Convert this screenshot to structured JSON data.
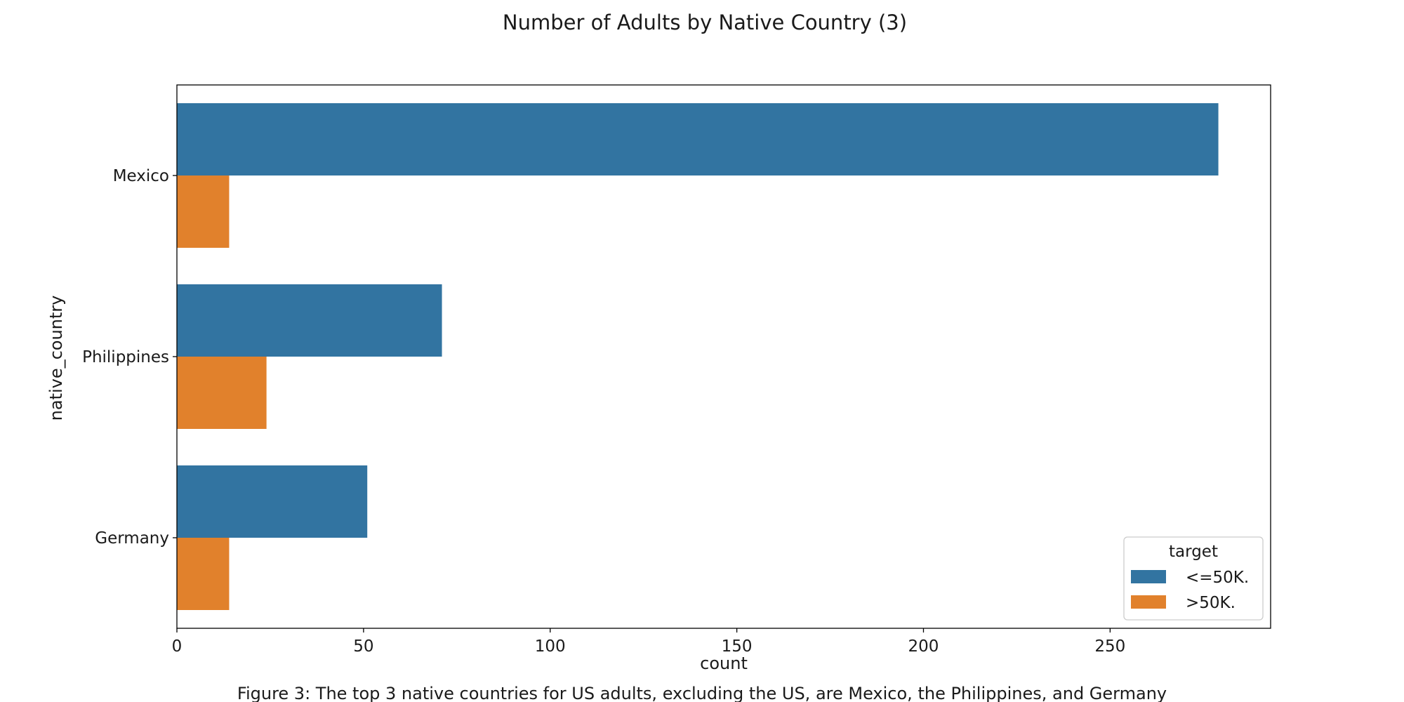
{
  "chart_data": {
    "type": "bar",
    "orientation": "horizontal",
    "title": "Number of Adults by Native Country (3)",
    "xlabel": "count",
    "ylabel": "native_country",
    "categories": [
      "Mexico",
      "Philippines",
      "Germany"
    ],
    "series": [
      {
        "name": "<=50K.",
        "color": "#3274a1",
        "values": [
          279,
          71,
          51
        ]
      },
      {
        "name": ">50K.",
        "color": "#e1812c",
        "values": [
          14,
          24,
          14
        ]
      }
    ],
    "xlim": [
      0,
      293
    ],
    "xticks": [
      0,
      50,
      100,
      150,
      200,
      250
    ],
    "grid": false,
    "legend": {
      "title": "target",
      "placement": "lower-right"
    }
  },
  "caption": "Figure 3: The top 3 native countries for US adults, excluding the US, are Mexico, the Philippines, and Germany"
}
